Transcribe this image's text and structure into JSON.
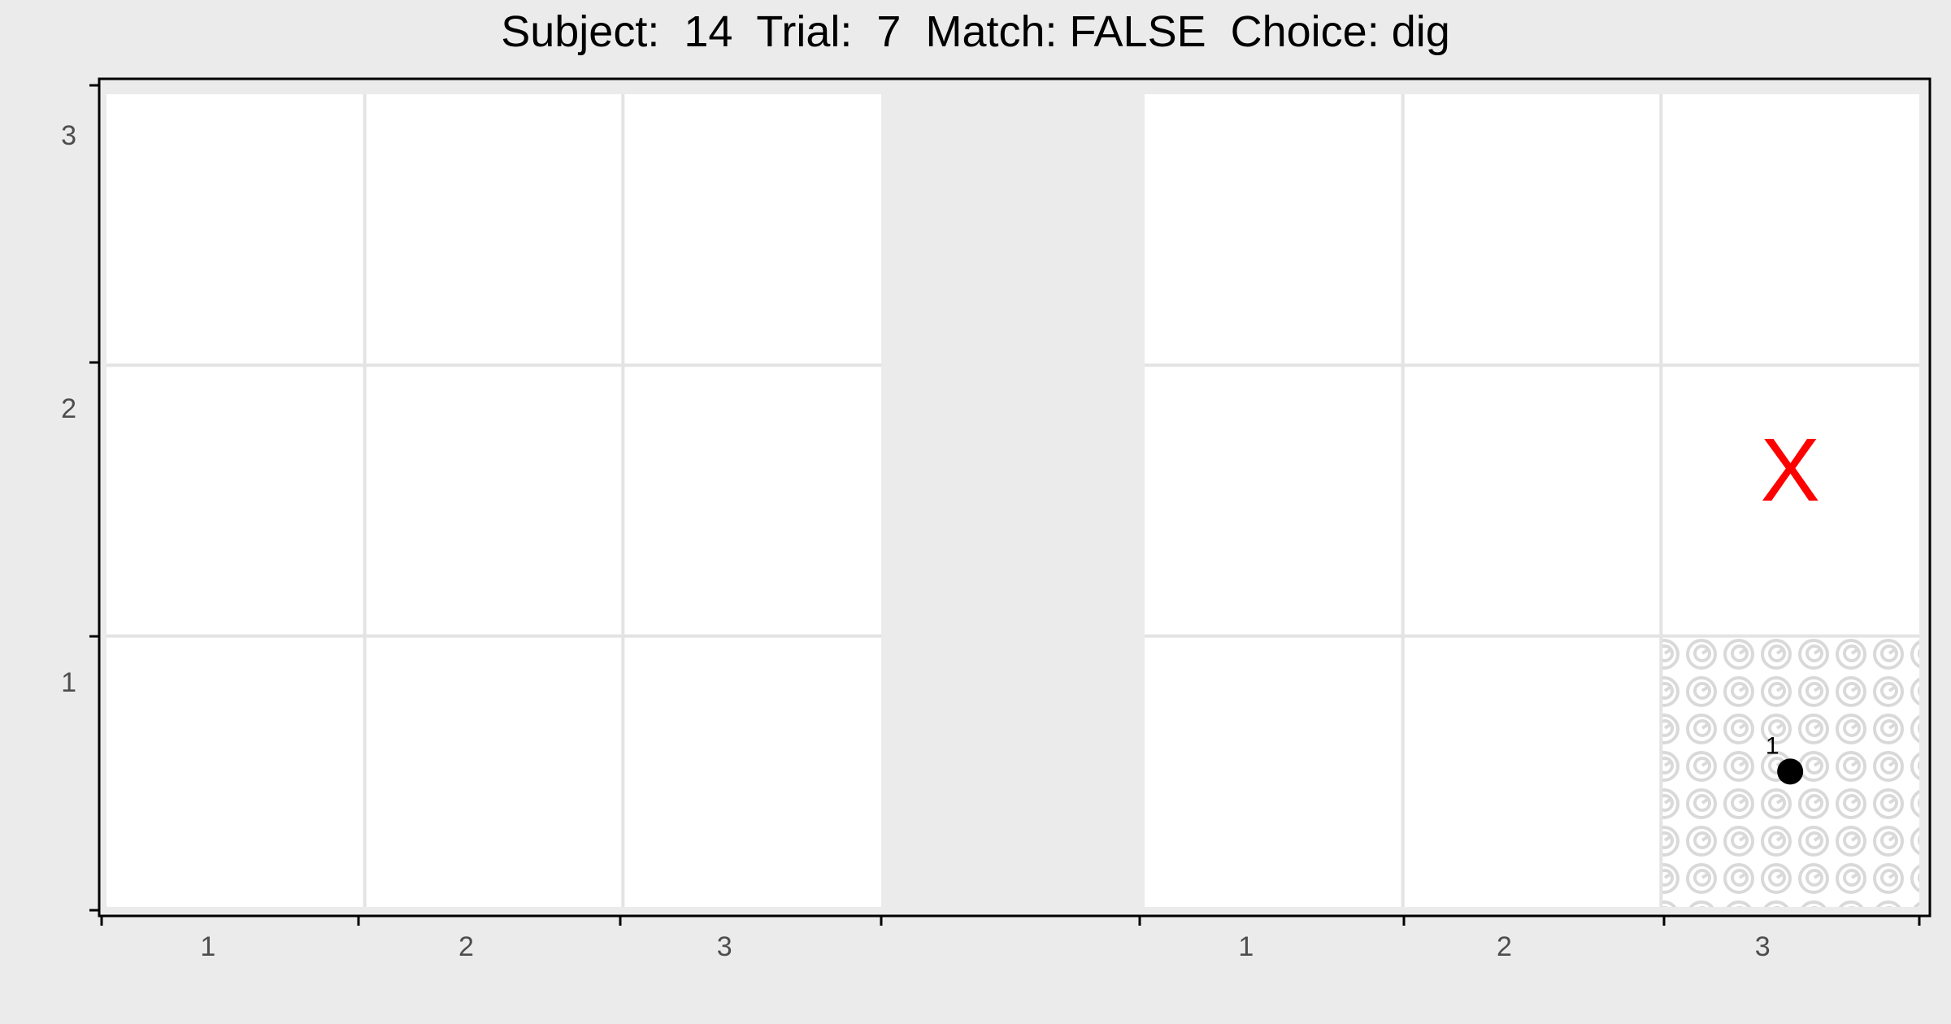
{
  "title": "Subject:  14  Trial:  7  Match: FALSE  Choice: dig",
  "colors": {
    "background": "#ebebeb",
    "panel": "#ffffff",
    "grid": "#e3e3e3",
    "axis": "#000000",
    "tick_text": "#4d4d4d",
    "marker_x": "#ff0000",
    "point": "#000000",
    "texture": "#d9d9d9"
  },
  "chart_data": {
    "type": "scatter",
    "title": "Subject:  14  Trial:  7  Match: FALSE  Choice: dig",
    "xlabel": "",
    "ylabel": "",
    "grid": true,
    "x_ticks": [
      "1",
      "2",
      "3"
    ],
    "y_ticks": [
      "1",
      "2",
      "3"
    ],
    "panels": [
      {
        "id": "left",
        "cells": [
          1,
          2,
          3
        ],
        "textured_cells": [],
        "x_marks": [],
        "points": []
      },
      {
        "id": "right",
        "cells": [
          1,
          2,
          3
        ],
        "textured_cells": [
          {
            "x": 3,
            "y": 1
          }
        ],
        "x_marks": [
          {
            "x": 3,
            "y": 2,
            "label": "X"
          }
        ],
        "points": [
          {
            "x": 3,
            "y": 1,
            "label": "1"
          }
        ]
      }
    ]
  }
}
